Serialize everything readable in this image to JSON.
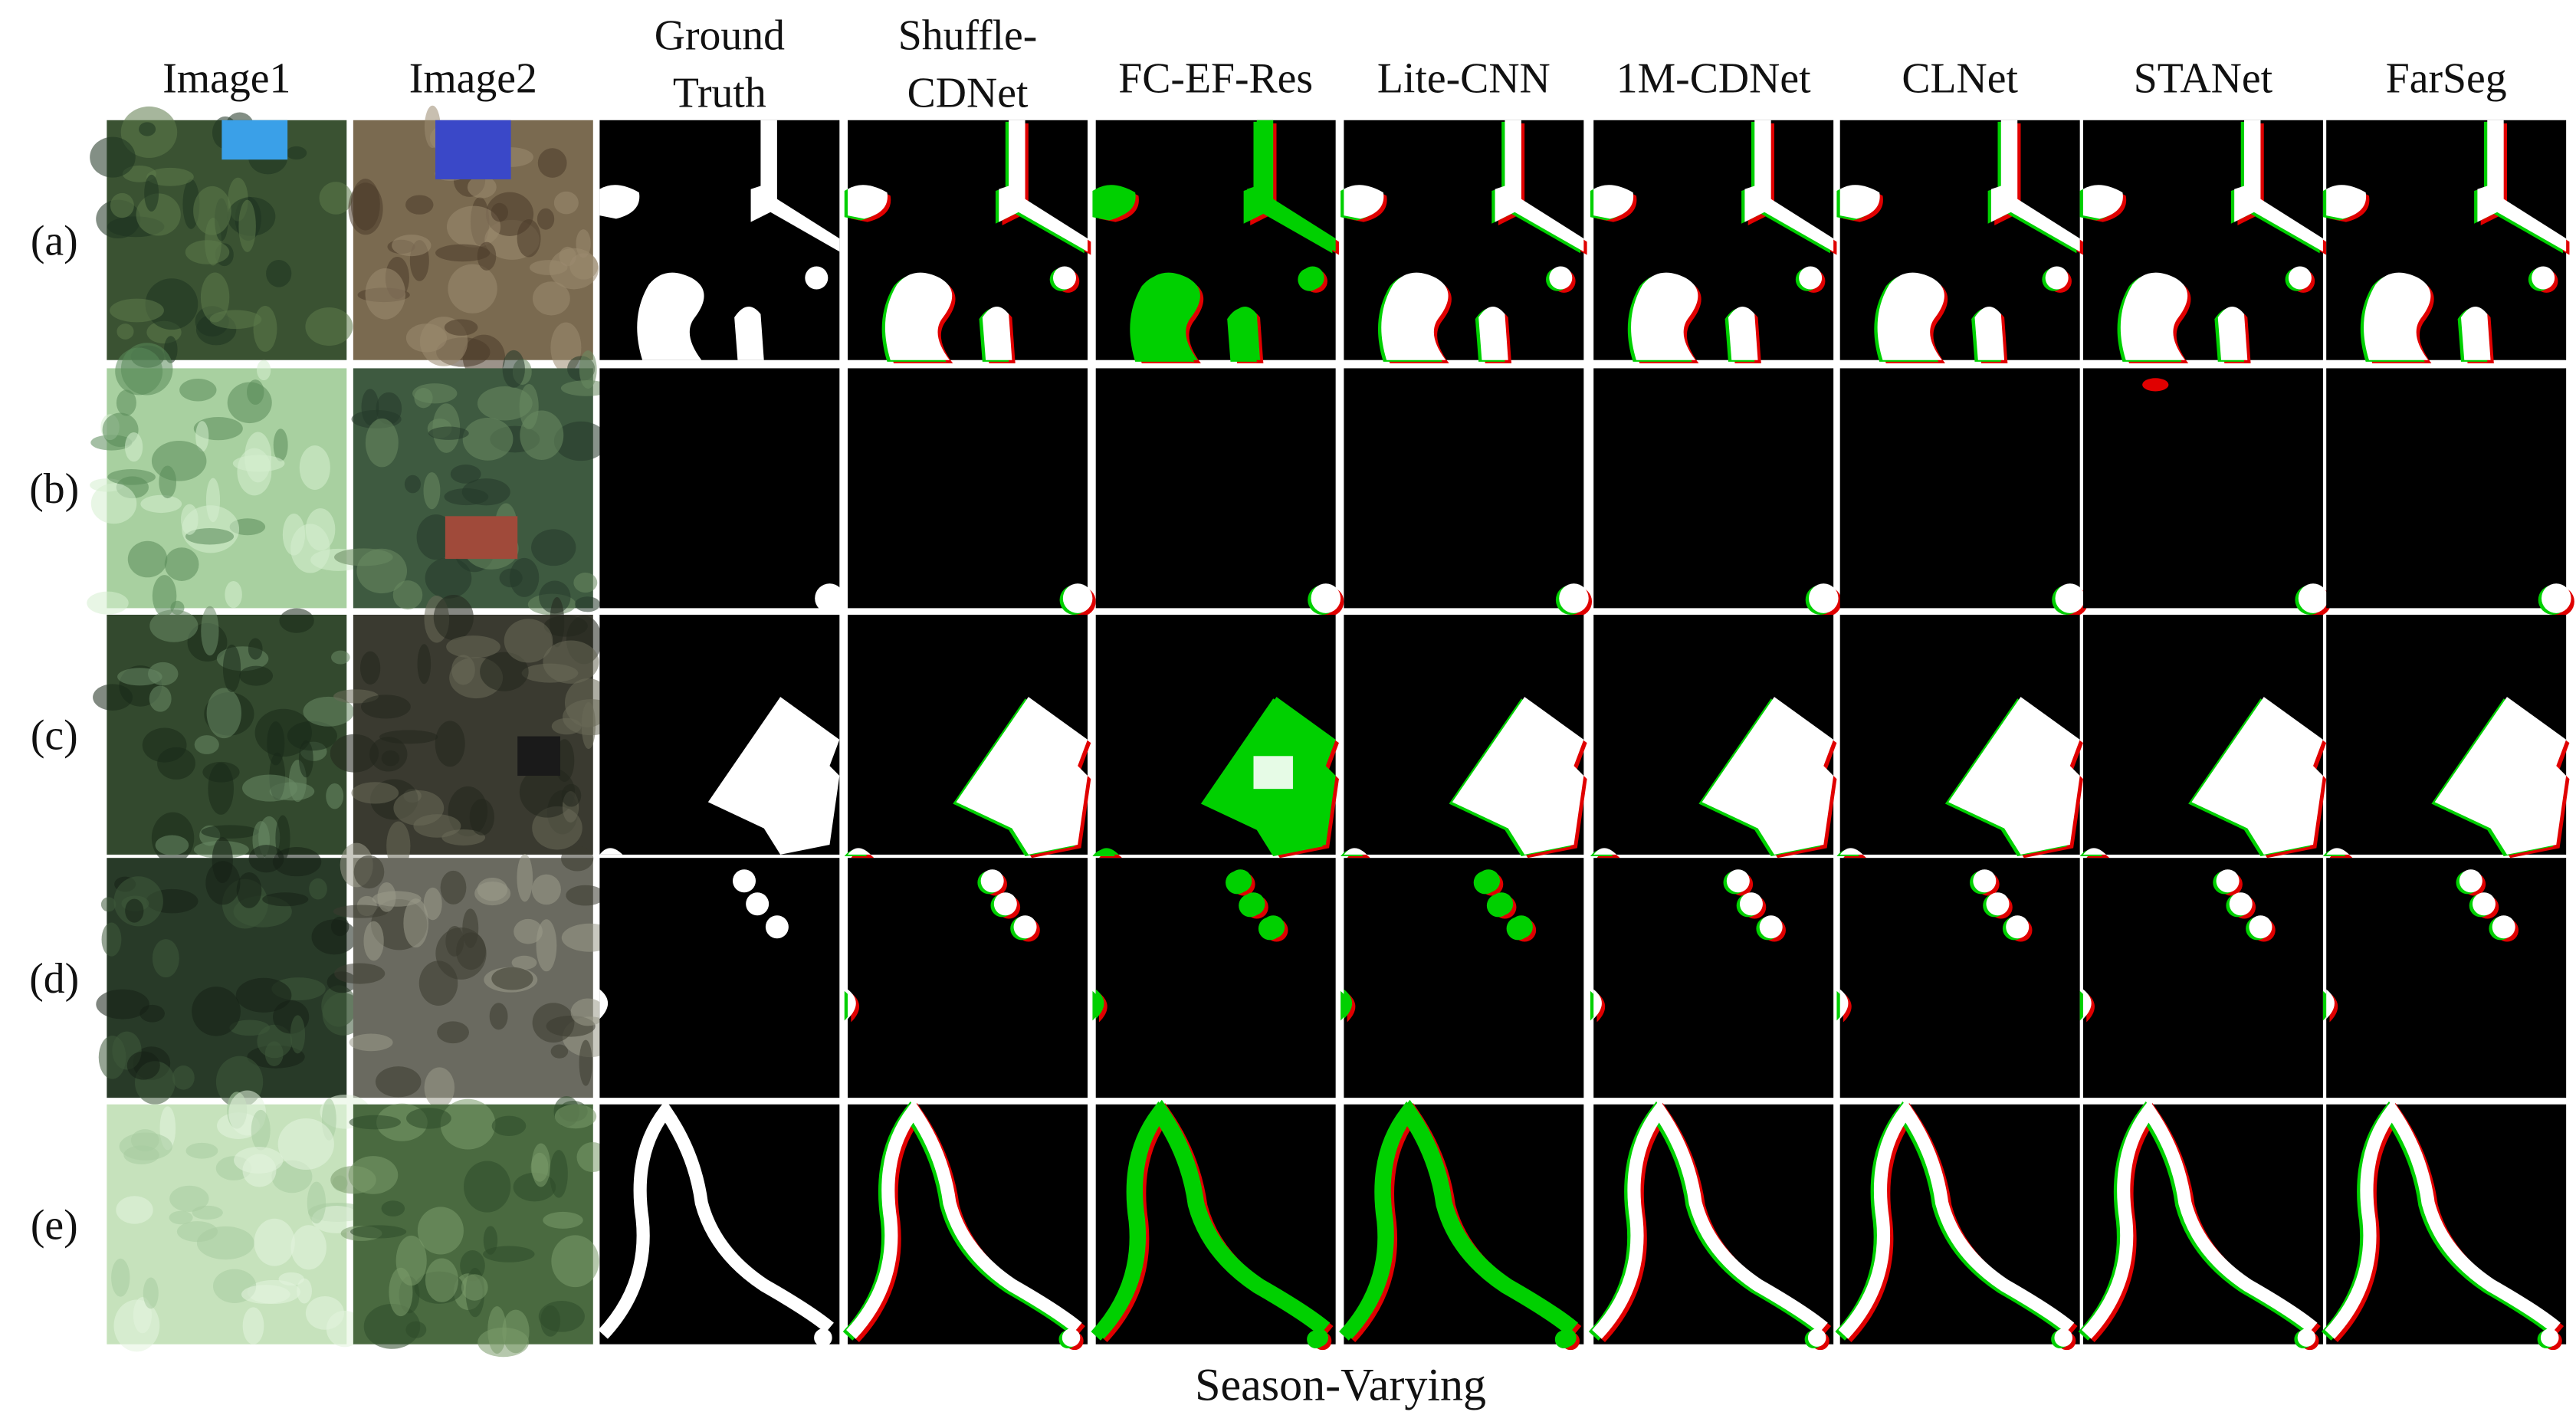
{
  "columns": [
    {
      "lines": [
        "Image1"
      ]
    },
    {
      "lines": [
        "Image2"
      ]
    },
    {
      "lines": [
        "Ground",
        "Truth"
      ]
    },
    {
      "lines": [
        "Shuffle-",
        "CDNet"
      ]
    },
    {
      "lines": [
        "FC-EF-Res"
      ]
    },
    {
      "lines": [
        "Lite-CNN"
      ]
    },
    {
      "lines": [
        "1M-CDNet"
      ]
    },
    {
      "lines": [
        "CLNet"
      ]
    },
    {
      "lines": [
        "STANet"
      ]
    },
    {
      "lines": [
        "FarSeg"
      ]
    }
  ],
  "rows": [
    "(a)",
    "(b)",
    "(c)",
    "(d)",
    "(e)"
  ],
  "caption": "Season-Varying"
}
